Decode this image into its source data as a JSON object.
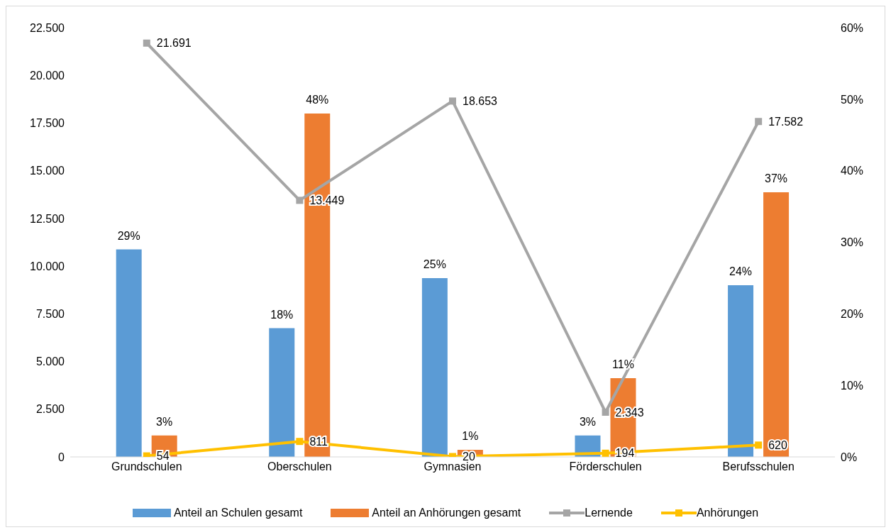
{
  "chart_data": {
    "type": "bar",
    "categories": [
      "Grundschulen",
      "Oberschulen",
      "Gymnasien",
      "Förderschulen",
      "Berufsschulen"
    ],
    "series": [
      {
        "name": "Anteil an Schulen gesamt",
        "axis": "y2",
        "color": "#5b9bd5",
        "values": [
          29,
          18,
          25,
          3,
          24
        ],
        "value_labels": [
          "29%",
          "18%",
          "25%",
          "3%",
          "24%"
        ]
      },
      {
        "name": "Anteil an Anhörungen gesamt",
        "axis": "y2",
        "color": "#ed7d31",
        "values": [
          3,
          48,
          1,
          11,
          37
        ],
        "value_labels": [
          "3%",
          "48%",
          "1%",
          "11%",
          "37%"
        ]
      },
      {
        "name": "Lernende",
        "type": "line",
        "color": "#a5a5a5",
        "values": [
          21691,
          13449,
          18653,
          2343,
          17582
        ],
        "value_labels": [
          "21.691",
          "13.449",
          "18.653",
          "2.343",
          "17.582"
        ]
      },
      {
        "name": "Anhörungen",
        "type": "line",
        "color": "#ffc000",
        "values": [
          54,
          811,
          20,
          194,
          620
        ],
        "value_labels": [
          "54",
          "811",
          "20",
          "194",
          "620"
        ]
      }
    ],
    "ylim": [
      0,
      22500
    ],
    "yticks": [
      {
        "value": 0,
        "label": "0"
      },
      {
        "value": 2500,
        "label": "2.500"
      },
      {
        "value": 5000,
        "label": "5.000"
      },
      {
        "value": 7500,
        "label": "7.500"
      },
      {
        "value": 10000,
        "label": "10.000"
      },
      {
        "value": 12500,
        "label": "12.500"
      },
      {
        "value": 15000,
        "label": "15.000"
      },
      {
        "value": 17500,
        "label": "17.500"
      },
      {
        "value": 20000,
        "label": "20.000"
      },
      {
        "value": 22500,
        "label": "22.500"
      }
    ],
    "y2lim": [
      0,
      60
    ],
    "y2ticks": [
      {
        "value": 0,
        "label": "0%"
      },
      {
        "value": 10,
        "label": "10%"
      },
      {
        "value": 20,
        "label": "20%"
      },
      {
        "value": 30,
        "label": "30%"
      },
      {
        "value": 40,
        "label": "40%"
      },
      {
        "value": 50,
        "label": "50%"
      },
      {
        "value": 60,
        "label": "60%"
      }
    ],
    "legend": "bottom",
    "marker": "square",
    "line_style": "solid",
    "grid": false
  }
}
